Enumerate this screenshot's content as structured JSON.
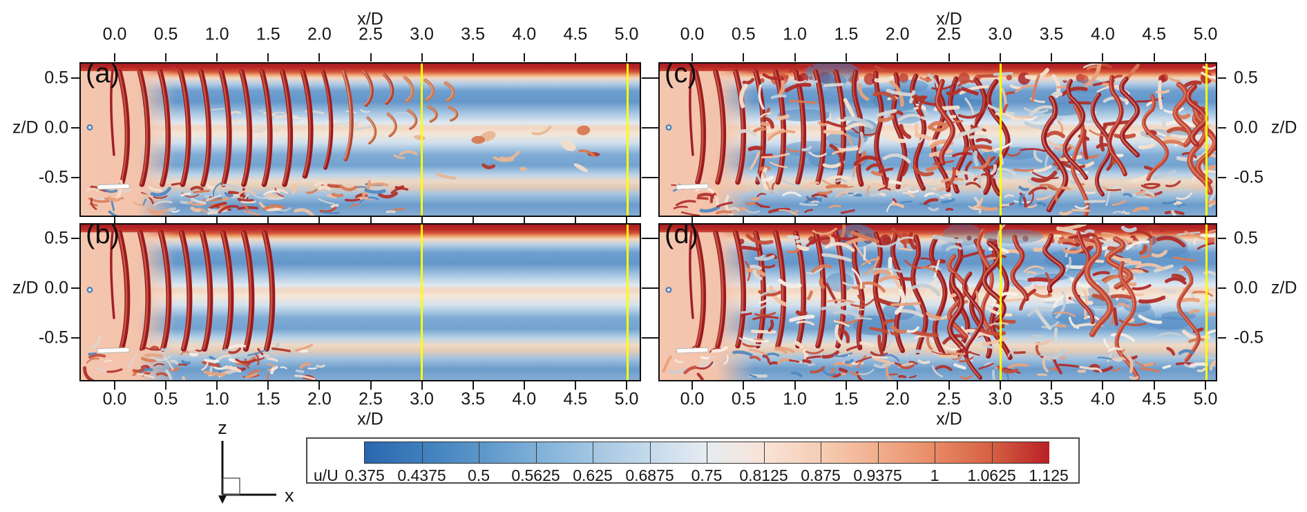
{
  "figure": {
    "panels": [
      {
        "label": "(a)"
      },
      {
        "label": "(b)"
      },
      {
        "label": "(c)"
      },
      {
        "label": "(d)"
      }
    ],
    "axes": {
      "x_label": "x/D",
      "x_ticks": [
        "0.0",
        "0.5",
        "1.0",
        "1.5",
        "2.0",
        "2.5",
        "3.0",
        "3.5",
        "4.0",
        "4.5",
        "5.0"
      ],
      "z_label": "z/D",
      "z_ticks": [
        "0.5",
        "0.0",
        "-0.5"
      ]
    },
    "colorbar": {
      "label": "u/U",
      "tick_values": [
        "0.375",
        "0.4375",
        "0.5",
        "0.5625",
        "0.625",
        "0.6875",
        "0.75",
        "0.8125",
        "0.875",
        "0.9375",
        "1",
        "1.0625",
        "1.125"
      ],
      "boundary_colors": [
        "#2a66ae",
        "#3f7fbc",
        "#5b96ca",
        "#7fb0d8",
        "#a3c6e2",
        "#c5daec",
        "#e7ecf1",
        "#f8e3d7",
        "#f6cdb4",
        "#f1ae8d",
        "#e88a64",
        "#d55f41",
        "#b92027"
      ]
    },
    "annotations": {
      "reference_lines_xD": [
        "3.0",
        "5.0"
      ],
      "reference_line_color": "#ffff00"
    },
    "coordinate_indicator": {
      "vertical_label": "z",
      "horizontal_label": "x"
    }
  },
  "chart_data": {
    "type": "heatmap",
    "subtype": "vortex-structure-flow-visualization",
    "panels": [
      "(a)",
      "(b)",
      "(c)",
      "(d)"
    ],
    "x_axis": {
      "label": "x/D",
      "ticks": [
        0.0,
        0.5,
        1.0,
        1.5,
        2.0,
        2.5,
        3.0,
        3.5,
        4.0,
        4.5,
        5.0
      ]
    },
    "z_axis": {
      "label": "z/D",
      "ticks": [
        0.5,
        0.0,
        -0.5
      ]
    },
    "colorbar": {
      "label": "u/U",
      "levels": [
        0.375,
        0.4375,
        0.5,
        0.5625,
        0.625,
        0.6875,
        0.75,
        0.8125,
        0.875,
        0.9375,
        1.0,
        1.0625,
        1.125
      ],
      "colormap": "blue-white-red"
    },
    "reference_lines_xD": [
      3.0,
      5.0
    ],
    "coordinate_axes": [
      "z",
      "x"
    ]
  }
}
